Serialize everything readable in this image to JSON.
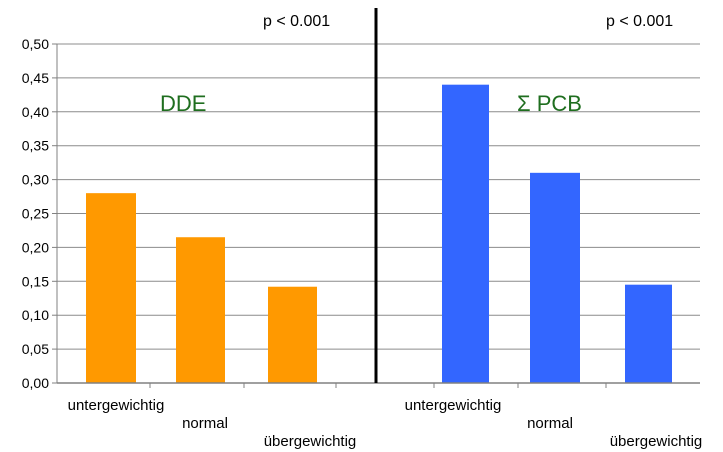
{
  "chart_data": [
    {
      "type": "bar",
      "title": "DDE",
      "annotation": "p < 0.001",
      "categories": [
        "untergewichtig",
        "normal",
        "übergewichtig"
      ],
      "values": [
        0.28,
        0.215,
        0.142
      ],
      "color": "#ff9900",
      "ylim": [
        0,
        0.5
      ]
    },
    {
      "type": "bar",
      "title": "Σ PCB",
      "annotation": "p < 0.001",
      "categories": [
        "untergewichtig",
        "normal",
        "übergewichtig"
      ],
      "values": [
        0.44,
        0.31,
        0.145
      ],
      "color": "#3366ff",
      "ylim": [
        0,
        0.5
      ]
    }
  ],
  "y_ticks": [
    "0,00",
    "0,05",
    "0,10",
    "0,15",
    "0,20",
    "0,25",
    "0,30",
    "0,35",
    "0,40",
    "0,45",
    "0,50"
  ],
  "grid": true
}
